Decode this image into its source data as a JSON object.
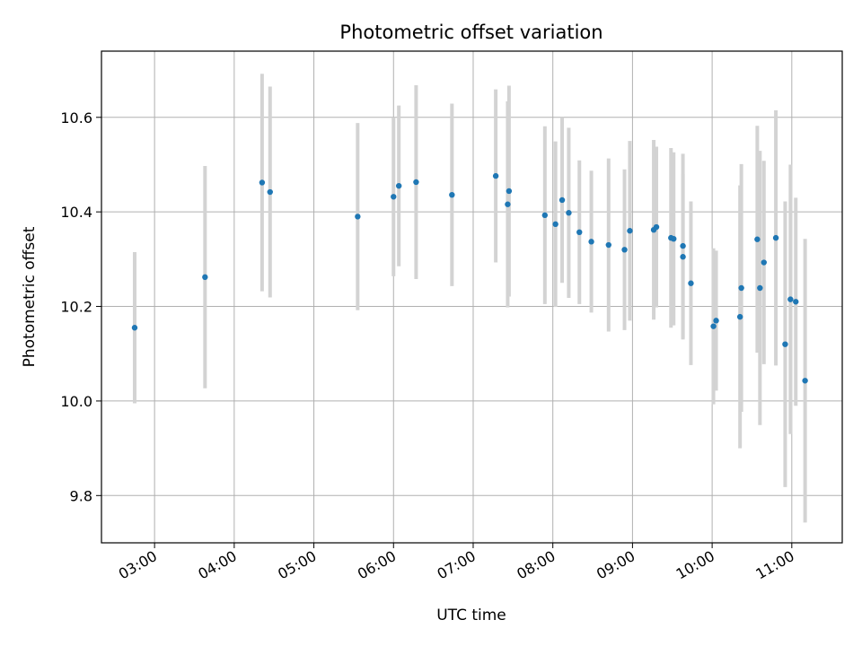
{
  "chart_data": {
    "type": "scatter",
    "title": "Photometric offset variation",
    "xlabel": "UTC time",
    "ylabel": "Photometric offset",
    "x_axis_type": "time",
    "xlim": [
      "02:20",
      "11:38"
    ],
    "ylim": [
      9.7,
      10.74
    ],
    "x_ticks": [
      "03:00",
      "04:00",
      "05:00",
      "06:00",
      "07:00",
      "08:00",
      "09:00",
      "10:00",
      "11:00"
    ],
    "y_ticks": [
      9.8,
      10.0,
      10.2,
      10.4,
      10.6
    ],
    "y_tick_labels": [
      "9.8",
      "10.0",
      "10.2",
      "10.4",
      "10.6"
    ],
    "grid": true,
    "marker_color": "#1f77b4",
    "errorbar_color": "#d3d3d3",
    "series": [
      {
        "points": [
          {
            "x": "02:45",
            "y": 10.155,
            "err": 0.16
          },
          {
            "x": "03:38",
            "y": 10.262,
            "err": 0.235
          },
          {
            "x": "04:21",
            "y": 10.462,
            "err": 0.23
          },
          {
            "x": "04:27",
            "y": 10.442,
            "err": 0.223
          },
          {
            "x": "05:33",
            "y": 10.39,
            "err": 0.198
          },
          {
            "x": "06:00",
            "y": 10.432,
            "err": 0.168
          },
          {
            "x": "06:04",
            "y": 10.455,
            "err": 0.17
          },
          {
            "x": "06:17",
            "y": 10.463,
            "err": 0.205
          },
          {
            "x": "06:44",
            "y": 10.436,
            "err": 0.193
          },
          {
            "x": "07:17",
            "y": 10.476,
            "err": 0.183
          },
          {
            "x": "07:26",
            "y": 10.416,
            "err": 0.218
          },
          {
            "x": "07:27",
            "y": 10.444,
            "err": 0.223
          },
          {
            "x": "07:54",
            "y": 10.393,
            "err": 0.188
          },
          {
            "x": "08:02",
            "y": 10.374,
            "err": 0.175
          },
          {
            "x": "08:07",
            "y": 10.425,
            "err": 0.175
          },
          {
            "x": "08:12",
            "y": 10.398,
            "err": 0.18
          },
          {
            "x": "08:20",
            "y": 10.357,
            "err": 0.152
          },
          {
            "x": "08:29",
            "y": 10.337,
            "err": 0.15
          },
          {
            "x": "08:42",
            "y": 10.33,
            "err": 0.183
          },
          {
            "x": "08:54",
            "y": 10.32,
            "err": 0.17
          },
          {
            "x": "08:58",
            "y": 10.36,
            "err": 0.19
          },
          {
            "x": "09:16",
            "y": 10.362,
            "err": 0.19
          },
          {
            "x": "09:18",
            "y": 10.368,
            "err": 0.17
          },
          {
            "x": "09:29",
            "y": 10.345,
            "err": 0.19
          },
          {
            "x": "09:31",
            "y": 10.343,
            "err": 0.183
          },
          {
            "x": "09:38",
            "y": 10.328,
            "err": 0.195
          },
          {
            "x": "09:38",
            "y": 10.305,
            "err": 0.175
          },
          {
            "x": "09:44",
            "y": 10.249,
            "err": 0.173
          },
          {
            "x": "10:01",
            "y": 10.158,
            "err": 0.165
          },
          {
            "x": "10:03",
            "y": 10.17,
            "err": 0.148
          },
          {
            "x": "10:21",
            "y": 10.178,
            "err": 0.278
          },
          {
            "x": "10:22",
            "y": 10.239,
            "err": 0.262
          },
          {
            "x": "10:34",
            "y": 10.342,
            "err": 0.24
          },
          {
            "x": "10:36",
            "y": 10.239,
            "err": 0.29
          },
          {
            "x": "10:39",
            "y": 10.293,
            "err": 0.215
          },
          {
            "x": "10:48",
            "y": 10.345,
            "err": 0.27
          },
          {
            "x": "10:55",
            "y": 10.12,
            "err": 0.302
          },
          {
            "x": "10:59",
            "y": 10.215,
            "err": 0.285
          },
          {
            "x": "11:03",
            "y": 10.21,
            "err": 0.22
          },
          {
            "x": "11:10",
            "y": 10.043,
            "err": 0.3
          }
        ]
      }
    ]
  }
}
